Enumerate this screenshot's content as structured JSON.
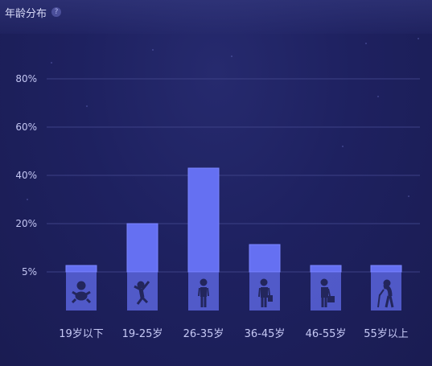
{
  "header": {
    "title": "年龄分布",
    "help_icon": "?"
  },
  "colors": {
    "bar": "#6570f2",
    "bar_light": "#7a85ff",
    "grid": "#3d4186",
    "tick": "#c3c6f2",
    "icon": "#23265c"
  },
  "chart_data": {
    "type": "bar",
    "categories": [
      "19岁以下",
      "19-25岁",
      "26-35岁",
      "36-45岁",
      "46-55岁",
      "55岁以上"
    ],
    "values": [
      5.5,
      20,
      43,
      13.5,
      5.5,
      5
    ],
    "icons": [
      "baby-icon",
      "child-jumping-icon",
      "adult-icon",
      "businessman-icon",
      "worker-with-briefcase-icon",
      "elderly-with-cane-icon"
    ],
    "y_ticks": [
      "5%",
      "20%",
      "40%",
      "60%",
      "80%"
    ],
    "ylim": [
      0,
      80
    ],
    "grid": true,
    "title": "",
    "xlabel": "",
    "ylabel": ""
  }
}
